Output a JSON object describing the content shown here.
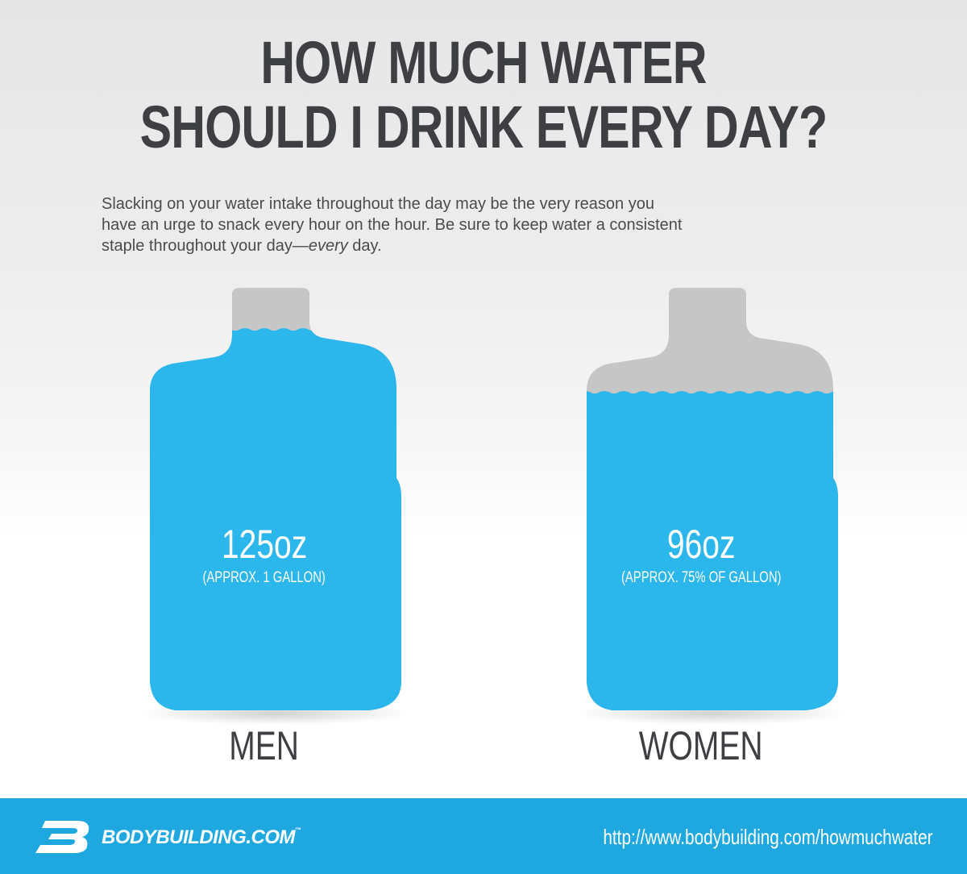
{
  "title": {
    "line1": "HOW MUCH WATER",
    "line2": "SHOULD I DRINK EVERY DAY?"
  },
  "intro": {
    "line1": "Slacking on your water intake throughout the day may be the very reason you",
    "line2": "have an urge to snack every hour on the hour. Be sure to keep water a consistent",
    "line3_start": "staple throughout your day—",
    "line3_emphasis": "every",
    "line3_end": " day."
  },
  "jugs": [
    {
      "label": "MEN",
      "amount": "125oz",
      "approx": "(APPROX. 1 GALLON)",
      "fill_fraction": 1.0
    },
    {
      "label": "WOMEN",
      "amount": "96oz",
      "approx": "(APPROX. 75% OF GALLON)",
      "fill_fraction": 0.75
    }
  ],
  "footer": {
    "brand": "BODYBUILDING.COM",
    "trademark": "™",
    "url": "http://www.bodybuilding.com/howmuchwater"
  },
  "colors": {
    "water": "#2bb6ec",
    "empty_jug": "#c6c6c6",
    "title_text": "#3e3f42",
    "footer_bg": "#1fa8e0"
  },
  "icons": {
    "logo": "bodybuilding-b-logo-icon",
    "jug": "milk-jug-icon"
  }
}
